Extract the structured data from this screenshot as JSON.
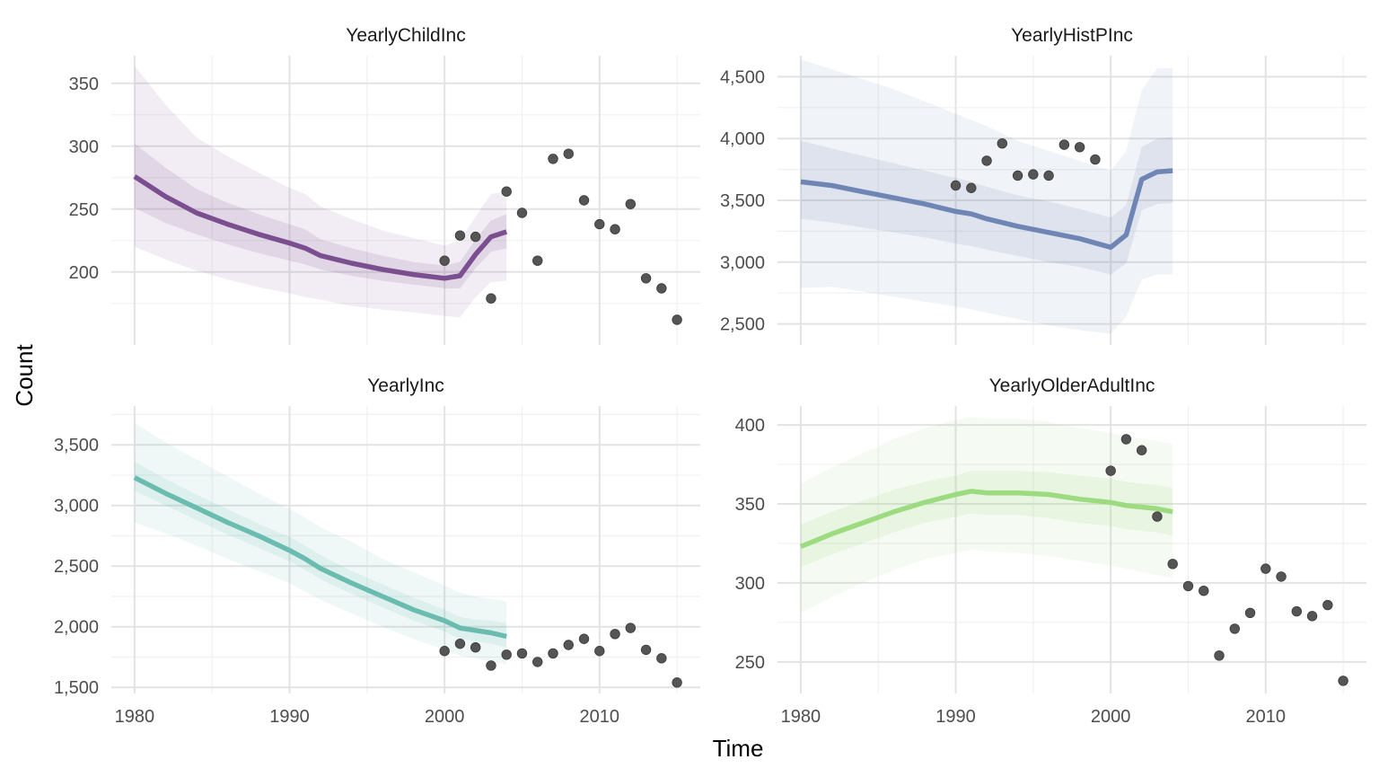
{
  "chart_data": {
    "type": "line",
    "xlabel": "Time",
    "ylabel": "Count",
    "grid": true,
    "legend": "none",
    "x_ticks": [
      1980,
      1990,
      2000,
      2010
    ],
    "x_range": [
      1978.5,
      2016.5
    ],
    "panels": [
      {
        "title": "YearlyChildInc",
        "color": "#7b4f8f",
        "ylim": [
          142,
          372
        ],
        "y_ticks": [
          200,
          250,
          300,
          350
        ],
        "y_tick_labels": [
          "200",
          "250",
          "300",
          "350"
        ],
        "fit": {
          "x": [
            1980,
            1982,
            1984,
            1986,
            1988,
            1990,
            1991,
            1992,
            1994,
            1996,
            1998,
            2000,
            2001,
            2002,
            2003,
            2004
          ],
          "y": [
            276,
            260,
            247,
            238,
            230,
            223,
            219,
            213,
            207,
            202,
            198,
            195,
            197,
            214,
            228,
            232
          ],
          "inner_lower": [
            251,
            239,
            230,
            222,
            215,
            209,
            206,
            202,
            197,
            193,
            190,
            187,
            187,
            203,
            216,
            219
          ],
          "inner_upper": [
            302,
            283,
            266,
            255,
            246,
            238,
            234,
            226,
            219,
            213,
            208,
            205,
            208,
            226,
            241,
            246
          ],
          "outer_lower": [
            220,
            210,
            201,
            194,
            188,
            183,
            180,
            178,
            173,
            170,
            168,
            165,
            164,
            180,
            192,
            193
          ],
          "outer_upper": [
            364,
            333,
            307,
            292,
            279,
            267,
            262,
            252,
            242,
            233,
            227,
            221,
            225,
            244,
            262,
            264
          ]
        },
        "observed": {
          "x": [
            2000,
            2001,
            2002,
            2003,
            2004,
            2005,
            2006,
            2007,
            2008,
            2009,
            2010,
            2011,
            2012,
            2013,
            2014,
            2015
          ],
          "y": [
            209,
            229,
            228,
            179,
            264,
            247,
            209,
            290,
            294,
            257,
            238,
            234,
            254,
            195,
            187,
            162
          ]
        }
      },
      {
        "title": "YearlyHistPInc",
        "color": "#6f86b5",
        "ylim": [
          2330,
          4670
        ],
        "y_ticks": [
          2500,
          3000,
          3500,
          4000,
          4500
        ],
        "y_tick_labels": [
          "2,500",
          "3,000",
          "3,500",
          "4,000",
          "4,500"
        ],
        "fit": {
          "x": [
            1980,
            1982,
            1984,
            1986,
            1988,
            1990,
            1991,
            1992,
            1994,
            1996,
            1998,
            2000,
            2001,
            2002,
            2003,
            2004
          ],
          "y": [
            3650,
            3620,
            3570,
            3520,
            3470,
            3410,
            3390,
            3350,
            3290,
            3240,
            3190,
            3120,
            3220,
            3670,
            3730,
            3740
          ],
          "inner_lower": [
            3350,
            3320,
            3280,
            3240,
            3200,
            3150,
            3130,
            3100,
            3050,
            3000,
            2960,
            2900,
            2990,
            3420,
            3470,
            3480
          ],
          "inner_upper": [
            3980,
            3920,
            3860,
            3800,
            3740,
            3680,
            3650,
            3610,
            3540,
            3490,
            3430,
            3360,
            3460,
            3930,
            4000,
            4010
          ],
          "outer_lower": [
            2790,
            2800,
            2760,
            2720,
            2680,
            2640,
            2620,
            2590,
            2540,
            2490,
            2450,
            2420,
            2560,
            2860,
            2900,
            2900
          ],
          "outer_upper": [
            4640,
            4560,
            4480,
            4400,
            4300,
            4200,
            4150,
            4100,
            3980,
            3900,
            3820,
            3740,
            3900,
            4390,
            4570,
            4570
          ]
        },
        "observed": {
          "x": [
            1990,
            1991,
            1992,
            1993,
            1994,
            1995,
            1996,
            1997,
            1998,
            1999
          ],
          "y": [
            3620,
            3600,
            3820,
            3960,
            3700,
            3710,
            3700,
            3950,
            3930,
            3830
          ]
        }
      },
      {
        "title": "YearlyInc",
        "color": "#6bbcb0",
        "ylim": [
          1450,
          3820
        ],
        "y_ticks": [
          1500,
          2000,
          2500,
          3000,
          3500
        ],
        "y_tick_labels": [
          "1,500",
          "2,000",
          "2,500",
          "3,000",
          "3,500"
        ],
        "fit": {
          "x": [
            1980,
            1982,
            1984,
            1986,
            1988,
            1990,
            1991,
            1992,
            1994,
            1996,
            1998,
            2000,
            2001,
            2002,
            2003,
            2004
          ],
          "y": [
            3230,
            3100,
            2980,
            2860,
            2750,
            2630,
            2560,
            2480,
            2360,
            2250,
            2140,
            2050,
            1990,
            1970,
            1950,
            1920
          ],
          "inner_lower": [
            3120,
            3000,
            2880,
            2760,
            2650,
            2540,
            2470,
            2390,
            2270,
            2160,
            2050,
            1960,
            1900,
            1880,
            1860,
            1830
          ],
          "inner_upper": [
            3360,
            3220,
            3090,
            2970,
            2850,
            2740,
            2670,
            2590,
            2460,
            2350,
            2240,
            2140,
            2080,
            2060,
            2050,
            2030
          ],
          "outer_lower": [
            2860,
            2770,
            2670,
            2560,
            2460,
            2360,
            2290,
            2220,
            2110,
            2000,
            1900,
            1810,
            1760,
            1740,
            1710,
            1690
          ],
          "outer_upper": [
            3680,
            3520,
            3380,
            3240,
            3100,
            2970,
            2900,
            2820,
            2700,
            2560,
            2450,
            2340,
            2280,
            2250,
            2230,
            2210
          ]
        },
        "observed": {
          "x": [
            2000,
            2001,
            2002,
            2003,
            2004,
            2005,
            2006,
            2007,
            2008,
            2009,
            2010,
            2011,
            2012,
            2013,
            2014,
            2015
          ],
          "y": [
            1800,
            1860,
            1830,
            1680,
            1770,
            1780,
            1710,
            1780,
            1850,
            1900,
            1800,
            1940,
            1990,
            1810,
            1740,
            1540
          ]
        }
      },
      {
        "title": "YearlyOlderAdultInc",
        "color": "#9ddb80",
        "ylim": [
          230,
          412
        ],
        "y_ticks": [
          250,
          300,
          350,
          400
        ],
        "y_tick_labels": [
          "250",
          "300",
          "350",
          "400"
        ],
        "fit": {
          "x": [
            1980,
            1982,
            1984,
            1986,
            1988,
            1990,
            1991,
            1992,
            1994,
            1996,
            1998,
            2000,
            2001,
            2002,
            2003,
            2004
          ],
          "y": [
            323,
            331,
            338,
            345,
            351,
            356,
            358,
            357,
            357,
            356,
            353,
            351,
            349,
            348,
            347,
            345
          ],
          "inner_lower": [
            310,
            318,
            325,
            332,
            338,
            342,
            344,
            343,
            343,
            341,
            338,
            336,
            334,
            333,
            332,
            330
          ],
          "inner_upper": [
            337,
            345,
            352,
            359,
            364,
            368,
            371,
            371,
            371,
            370,
            368,
            366,
            364,
            363,
            362,
            360
          ],
          "outer_lower": [
            281,
            291,
            300,
            308,
            315,
            319,
            321,
            320,
            319,
            317,
            314,
            311,
            309,
            307,
            305,
            303
          ],
          "outer_upper": [
            363,
            373,
            382,
            391,
            398,
            403,
            405,
            404,
            404,
            402,
            398,
            395,
            393,
            391,
            390,
            388
          ]
        },
        "observed": {
          "x": [
            2000,
            2001,
            2002,
            2003,
            2004,
            2005,
            2006,
            2007,
            2008,
            2009,
            2010,
            2011,
            2012,
            2013,
            2014,
            2015
          ],
          "y": [
            371,
            391,
            384,
            342,
            312,
            298,
            295,
            254,
            271,
            281,
            309,
            304,
            282,
            279,
            286,
            238
          ]
        }
      }
    ]
  }
}
